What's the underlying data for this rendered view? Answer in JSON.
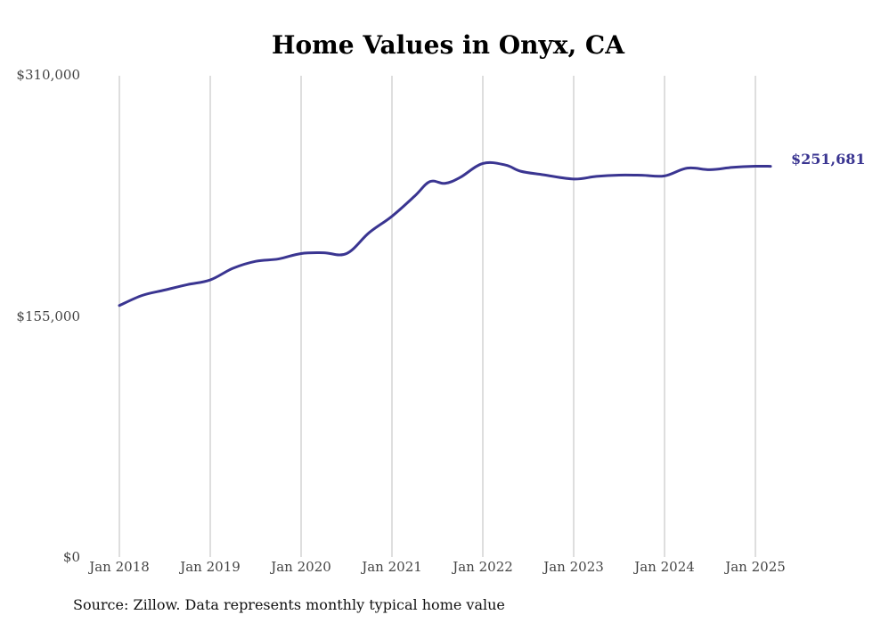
{
  "chart_data": {
    "type": "line",
    "title": "Home Values in Onyx, CA",
    "source": "Source: Zillow. Data represents monthly typical home value",
    "ylim": [
      0,
      310000
    ],
    "y_ticks": [
      {
        "value": 0,
        "label": "$0"
      },
      {
        "value": 155000,
        "label": "$155,000"
      },
      {
        "value": 310000,
        "label": "$310,000"
      }
    ],
    "x_ticks": [
      {
        "value": "2018-01",
        "label": "Jan 2018"
      },
      {
        "value": "2019-01",
        "label": "Jan 2019"
      },
      {
        "value": "2020-01",
        "label": "Jan 2020"
      },
      {
        "value": "2021-01",
        "label": "Jan 2021"
      },
      {
        "value": "2022-01",
        "label": "Jan 2022"
      },
      {
        "value": "2023-01",
        "label": "Jan 2023"
      },
      {
        "value": "2024-01",
        "label": "Jan 2024"
      },
      {
        "value": "2025-01",
        "label": "Jan 2025"
      }
    ],
    "grid": "vertical",
    "end_label": "$251,681",
    "line_color": "#3a3591",
    "series": [
      {
        "x": [
          "2018-01",
          "2018-04",
          "2018-07",
          "2018-10",
          "2019-01",
          "2019-04",
          "2019-07",
          "2019-10",
          "2020-01",
          "2020-04",
          "2020-07",
          "2020-10",
          "2021-01",
          "2021-04",
          "2021-06",
          "2021-08",
          "2021-10",
          "2022-01",
          "2022-04",
          "2022-06",
          "2022-09",
          "2023-01",
          "2023-04",
          "2023-07",
          "2023-10",
          "2024-01",
          "2024-04",
          "2024-07",
          "2024-10",
          "2025-01",
          "2025-03"
        ],
        "values": [
          162000,
          168500,
          172000,
          175500,
          178500,
          186000,
          190500,
          192000,
          195500,
          196000,
          195500,
          209000,
          219500,
          232500,
          241800,
          240700,
          244500,
          253500,
          252500,
          248500,
          246200,
          243500,
          245200,
          246000,
          245900,
          245500,
          250500,
          249500,
          251000,
          251700,
          251681
        ]
      }
    ]
  }
}
